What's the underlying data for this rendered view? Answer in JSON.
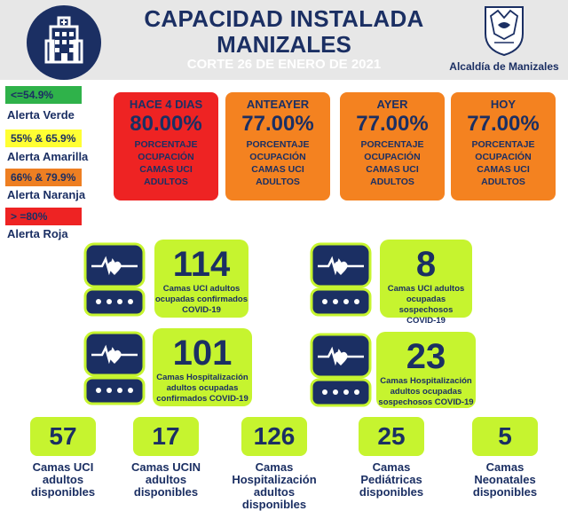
{
  "header": {
    "title_line1": "CAPACIDAD INSTALADA",
    "title_line2": "MANIZALES",
    "subtitle": "CORTE 26 DE ENERO DE 2021",
    "brand": "Alcaldía de Manizales",
    "colors": {
      "header_bg": "#e7e7e7",
      "navy": "#1b2f63"
    }
  },
  "legend": [
    {
      "range": "<=54.9%",
      "label": "Alerta Verde",
      "color": "#2fb24a"
    },
    {
      "range": "55% & 65.9%",
      "label": "Alerta Amarilla",
      "color": "#ffff33"
    },
    {
      "range": "66% & 79.9%",
      "label": "Alerta Naranja",
      "color": "#ee7f22"
    },
    {
      "range": "> =80%",
      "label": "Alerta Roja",
      "color": "#ee2323"
    }
  ],
  "occupancy": [
    {
      "label": "HACE 4 DIAS",
      "value": "80.00%",
      "desc": [
        "PORCENTAJE",
        "OCUPACIÓN",
        "CAMAS UCI",
        "ADULTOS"
      ],
      "color": "#ee2323"
    },
    {
      "label": "ANTEAYER",
      "value": "77.00%",
      "desc": [
        "PORCENTAJE",
        "OCUPACIÓN",
        "CAMAS UCI",
        "ADULTOS"
      ],
      "color": "#f48220"
    },
    {
      "label": "AYER",
      "value": "77.00%",
      "desc": [
        "PORCENTAJE",
        "OCUPACIÓN",
        "CAMAS UCI",
        "ADULTOS"
      ],
      "color": "#f48220"
    },
    {
      "label": "HOY",
      "value": "77.00%",
      "desc": [
        "PORCENTAJE",
        "OCUPACIÓN",
        "CAMAS UCI",
        "ADULTOS"
      ],
      "color": "#f48220"
    }
  ],
  "big_stats": [
    {
      "value": "114",
      "caption": [
        "Camas UCI adultos",
        "ocupadas confirmados",
        "COVID-19"
      ]
    },
    {
      "value": "8",
      "caption": [
        "Camas UCI adultos",
        "ocupadas sospechosos",
        "COVID-19"
      ]
    },
    {
      "value": "101",
      "caption": [
        "Camas Hospitalización",
        "adultos ocupadas",
        "confirmados COVID-19"
      ]
    },
    {
      "value": "23",
      "caption": [
        "Camas Hospitalización",
        "adultos ocupadas",
        "sospechosos COVID-19"
      ]
    }
  ],
  "small_stats": [
    {
      "value": "57",
      "caption": [
        "Camas UCI",
        "adultos",
        "disponibles"
      ]
    },
    {
      "value": "17",
      "caption": [
        "Camas UCIN",
        "adultos",
        "disponibles"
      ]
    },
    {
      "value": "126",
      "caption": [
        "Camas",
        "Hospitalización",
        "adultos",
        "disponibles"
      ]
    },
    {
      "value": "25",
      "caption": [
        "Camas",
        "Pediátricas",
        "disponibles"
      ]
    },
    {
      "value": "5",
      "caption": [
        "Camas",
        "Neonatales",
        "disponibles"
      ]
    }
  ],
  "icons": {
    "hospital": "hospital-building-icon",
    "monitor": "heart-monitor-icon",
    "crest": "city-crest-icon"
  }
}
